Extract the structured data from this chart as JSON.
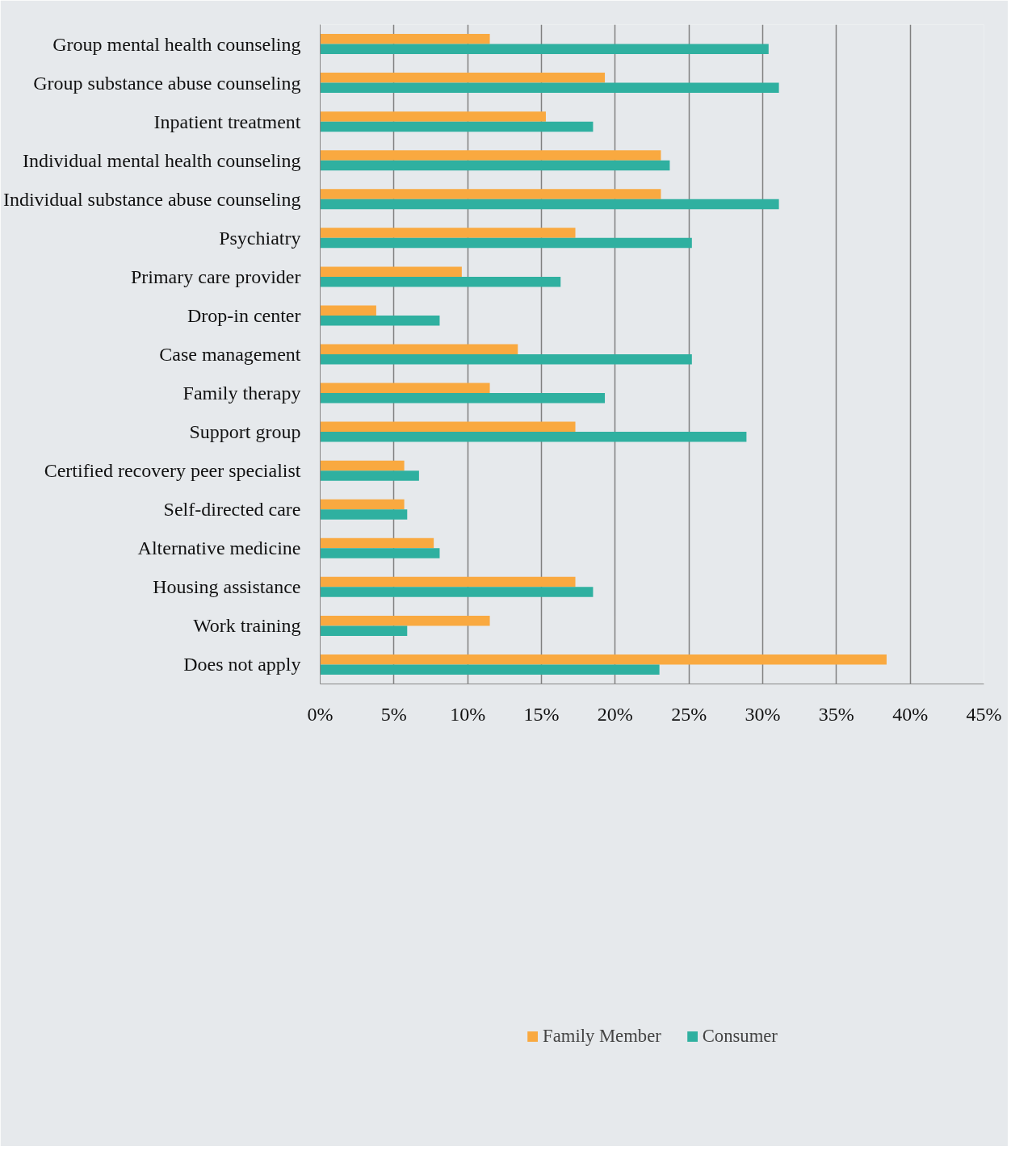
{
  "chart_data": {
    "type": "bar",
    "orientation": "horizontal",
    "categories": [
      "Group mental health counseling",
      "Group substance abuse counseling",
      "Inpatient treatment",
      "Individual mental health counseling",
      "Individual substance abuse counseling",
      "Psychiatry",
      "Primary care provider",
      "Drop-in center",
      "Case management",
      "Family therapy",
      "Support group",
      "Certified recovery peer specialist",
      "Self-directed care",
      "Alternative medicine",
      "Housing assistance",
      "Work training",
      "Does not apply"
    ],
    "series": [
      {
        "name": "Family Member",
        "color": "#f9a940",
        "values": [
          11.5,
          19.3,
          15.3,
          23.1,
          23.1,
          17.3,
          9.6,
          3.8,
          13.4,
          11.5,
          17.3,
          5.7,
          5.7,
          7.7,
          17.3,
          11.5,
          38.4
        ]
      },
      {
        "name": "Consumer",
        "color": "#2fb0a0",
        "values": [
          30.4,
          31.1,
          18.5,
          23.7,
          31.1,
          25.2,
          16.3,
          8.1,
          25.2,
          19.3,
          28.9,
          6.7,
          5.9,
          8.1,
          18.5,
          5.9,
          23.0
        ]
      }
    ],
    "xlim": [
      0,
      45
    ],
    "xticks": [
      {
        "value": 0,
        "label": "0%"
      },
      {
        "value": 5,
        "label": "5%"
      },
      {
        "value": 10,
        "label": "10%"
      },
      {
        "value": 15,
        "label": "15%"
      },
      {
        "value": 20,
        "label": "20%"
      },
      {
        "value": 25,
        "label": "25%"
      },
      {
        "value": 30,
        "label": "30%"
      },
      {
        "value": 35,
        "label": "35%"
      },
      {
        "value": 40,
        "label": "40%"
      },
      {
        "value": 45,
        "label": "45%"
      }
    ],
    "grid": "x",
    "legend": "bottom"
  }
}
